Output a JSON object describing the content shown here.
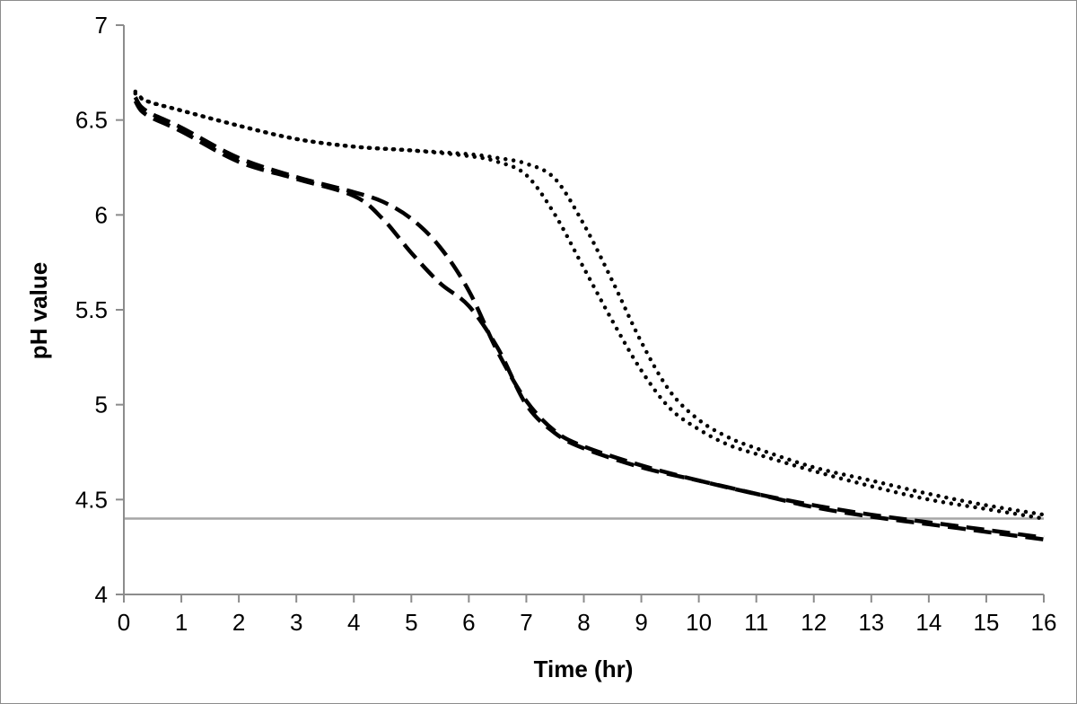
{
  "chart_data": {
    "type": "line",
    "title": "",
    "xlabel": "Time (hr)",
    "ylabel": "pH value",
    "xlim": [
      0,
      16
    ],
    "ylim": [
      4,
      7
    ],
    "xticks": [
      "0",
      "1",
      "2",
      "3",
      "4",
      "5",
      "6",
      "7",
      "8",
      "9",
      "10",
      "11",
      "12",
      "13",
      "14",
      "15",
      "16"
    ],
    "yticks": [
      "4",
      "4.5",
      "5",
      "5.5",
      "6",
      "6.5",
      "7"
    ],
    "grid": false,
    "legend": "none",
    "reference_line": {
      "name": "threshold",
      "y": 4.4,
      "color": "#a6a6a6"
    },
    "series": [
      {
        "name": "dotted-upper",
        "style": "dotted",
        "color": "#000000",
        "x": [
          0.2,
          0.4,
          1,
          2,
          3,
          4,
          5,
          6,
          6.5,
          7,
          7.5,
          8,
          8.5,
          9,
          9.5,
          10,
          10.5,
          11,
          12,
          13,
          14,
          15,
          16
        ],
        "y": [
          6.65,
          6.6,
          6.55,
          6.47,
          6.4,
          6.36,
          6.34,
          6.32,
          6.3,
          6.27,
          6.19,
          5.95,
          5.65,
          5.33,
          5.07,
          4.92,
          4.83,
          4.77,
          4.67,
          4.6,
          4.53,
          4.47,
          4.42
        ]
      },
      {
        "name": "dotted-lower",
        "style": "dotted",
        "color": "#000000",
        "x": [
          0.2,
          0.4,
          1,
          2,
          3,
          4,
          5,
          6,
          6.5,
          7,
          7.5,
          8,
          8.5,
          9,
          9.5,
          10,
          10.5,
          11,
          12,
          13,
          14,
          15,
          16
        ],
        "y": [
          6.64,
          6.6,
          6.55,
          6.47,
          6.4,
          6.36,
          6.34,
          6.31,
          6.28,
          6.21,
          6.0,
          5.72,
          5.44,
          5.18,
          4.98,
          4.87,
          4.79,
          4.74,
          4.65,
          4.57,
          4.5,
          4.45,
          4.4
        ]
      },
      {
        "name": "dashed-upper",
        "style": "dashed",
        "color": "#000000",
        "x": [
          0.2,
          0.3,
          0.5,
          1,
          2,
          3,
          4,
          4.5,
          5,
          5.5,
          6,
          6.5,
          7,
          7.5,
          8,
          9,
          10,
          11,
          12,
          13,
          14,
          15,
          16
        ],
        "y": [
          6.62,
          6.57,
          6.53,
          6.46,
          6.3,
          6.2,
          6.12,
          6.07,
          5.98,
          5.83,
          5.6,
          5.28,
          5.02,
          4.86,
          4.78,
          4.68,
          4.6,
          4.53,
          4.47,
          4.42,
          4.38,
          4.34,
          4.3
        ]
      },
      {
        "name": "dashed-lower",
        "style": "dashed",
        "color": "#000000",
        "x": [
          0.2,
          0.3,
          0.5,
          1,
          2,
          3,
          4,
          4.5,
          5,
          5.5,
          6,
          6.5,
          7,
          7.5,
          8,
          9,
          10,
          11,
          12,
          13,
          14,
          15,
          16
        ],
        "y": [
          6.6,
          6.55,
          6.51,
          6.44,
          6.28,
          6.19,
          6.1,
          5.98,
          5.8,
          5.64,
          5.52,
          5.3,
          5.0,
          4.85,
          4.77,
          4.67,
          4.6,
          4.53,
          4.46,
          4.41,
          4.37,
          4.33,
          4.29
        ]
      }
    ]
  }
}
